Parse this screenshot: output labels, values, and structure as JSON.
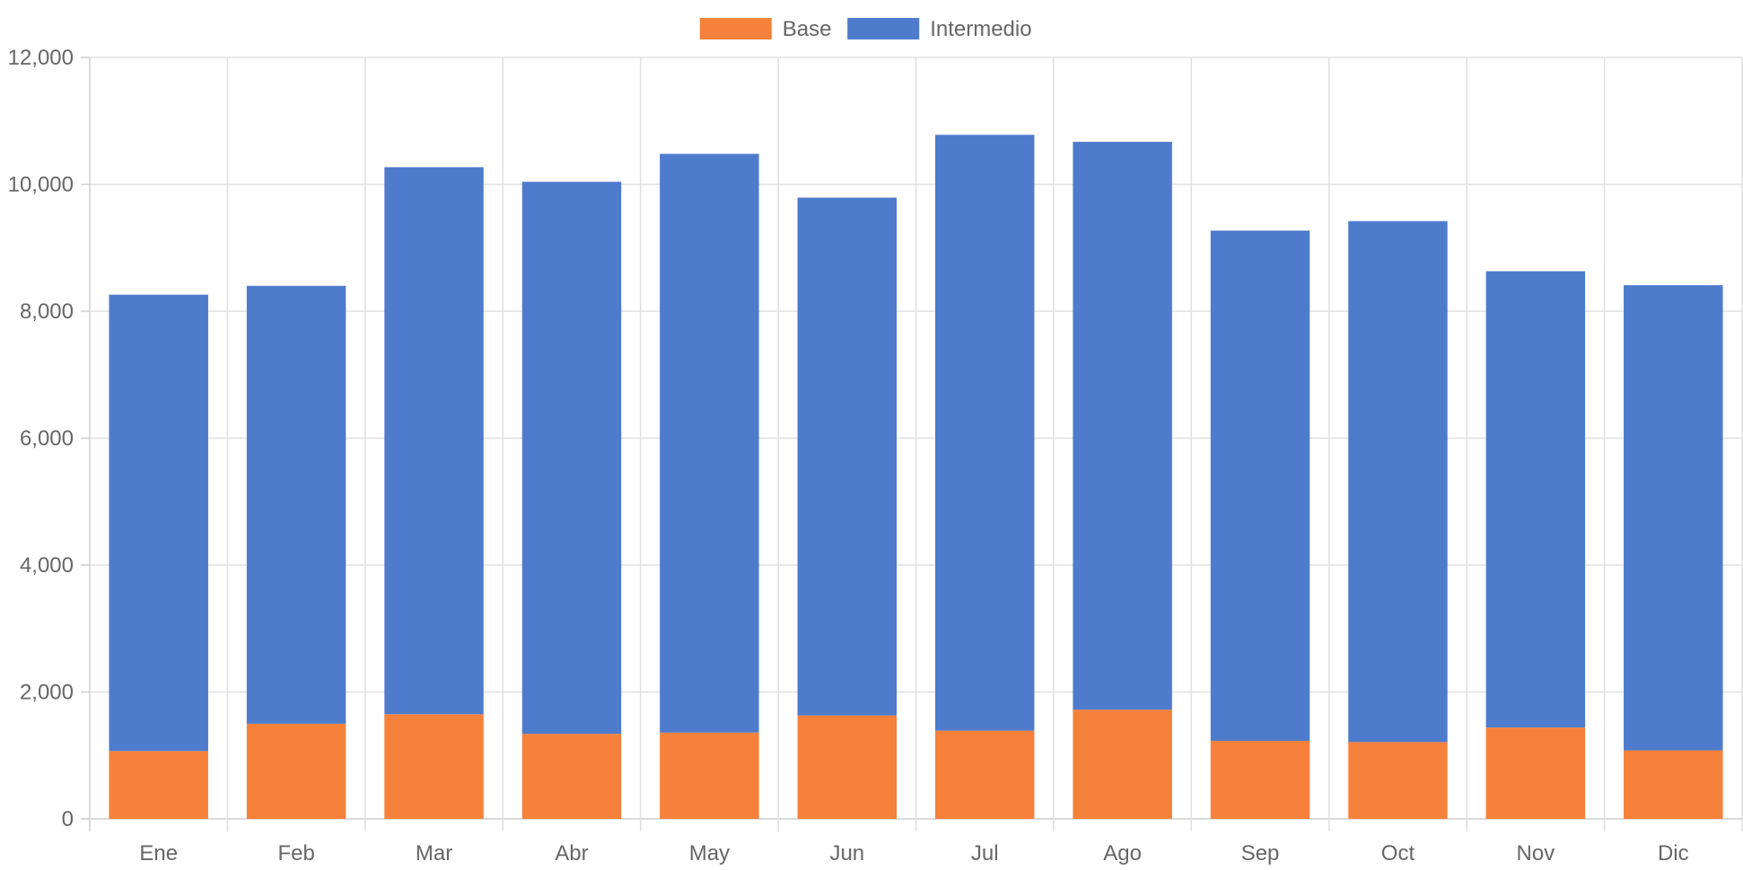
{
  "chart_data": {
    "type": "bar",
    "stacked": true,
    "title": "",
    "xlabel": "",
    "ylabel": "",
    "ylim": [
      0,
      12000
    ],
    "y_ticks": [
      0,
      2000,
      4000,
      6000,
      8000,
      10000,
      12000
    ],
    "y_tick_labels": [
      "0",
      "2,000",
      "4,000",
      "6,000",
      "8,000",
      "10,000",
      "12,000"
    ],
    "grid": true,
    "legend_position": "top-center",
    "categories": [
      "Ene",
      "Feb",
      "Mar",
      "Abr",
      "May",
      "Jun",
      "Jul",
      "Ago",
      "Sep",
      "Oct",
      "Nov",
      "Dic"
    ],
    "series": [
      {
        "name": "Base",
        "color": "#F5813B",
        "values": [
          1070,
          1500,
          1650,
          1340,
          1360,
          1630,
          1390,
          1720,
          1230,
          1210,
          1440,
          1080
        ]
      },
      {
        "name": "Intermedio",
        "color": "#4F7BCC",
        "values": [
          7190,
          6900,
          8620,
          8700,
          9120,
          8160,
          9390,
          8950,
          8040,
          8210,
          7190,
          7330
        ]
      }
    ]
  }
}
